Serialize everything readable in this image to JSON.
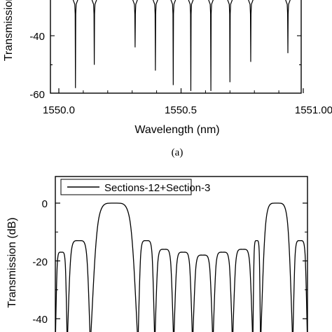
{
  "chart_data": [
    {
      "type": "line",
      "panel_label": "(a)",
      "xlabel": "Wavelength (nm)",
      "ylabel": "Transmission",
      "xlim": [
        1550.0,
        1551.0
      ],
      "ylim": [
        -62,
        0
      ],
      "x_ticks": [
        1550.0,
        1550.5,
        1551.0
      ],
      "x_tick_labels": [
        "1550.0",
        "1550.5",
        "1551.00"
      ],
      "y_ticks": [
        -40,
        -60
      ],
      "y_tick_labels": [
        "-40",
        "-60"
      ],
      "grid": false,
      "series": [
        {
          "dips": [
            {
              "x": 1550.068,
              "depth": -58
            },
            {
              "x": 1550.145,
              "depth": -50
            },
            {
              "x": 1550.312,
              "depth": -44
            },
            {
              "x": 1550.395,
              "depth": -52
            },
            {
              "x": 1550.468,
              "depth": -57
            },
            {
              "x": 1550.54,
              "depth": -59
            },
            {
              "x": 1550.622,
              "depth": -59
            },
            {
              "x": 1550.7,
              "depth": -56
            },
            {
              "x": 1550.785,
              "depth": -49
            },
            {
              "x": 1550.937,
              "depth": -46
            }
          ]
        }
      ]
    },
    {
      "type": "line",
      "panel_label": "(b)",
      "xlabel": "",
      "ylabel": "Transmission (dB)",
      "ylim": [
        -43,
        5
      ],
      "y_ticks": [
        0,
        -20,
        -40
      ],
      "y_tick_labels": [
        "0",
        "-20",
        "-40"
      ],
      "legend_position": "top",
      "grid": false,
      "series": [
        {
          "name": "Sections-12+Section-3",
          "lobes": [
            {
              "peak": -17
            },
            {
              "peak": -13
            },
            {
              "peak": 0
            },
            {
              "peak": -13
            },
            {
              "peak": -16
            },
            {
              "peak": -17
            },
            {
              "peak": -18
            },
            {
              "peak": -17
            },
            {
              "peak": -16
            },
            {
              "peak": -13
            },
            {
              "peak": 0
            },
            {
              "peak": -13
            }
          ]
        }
      ]
    }
  ]
}
